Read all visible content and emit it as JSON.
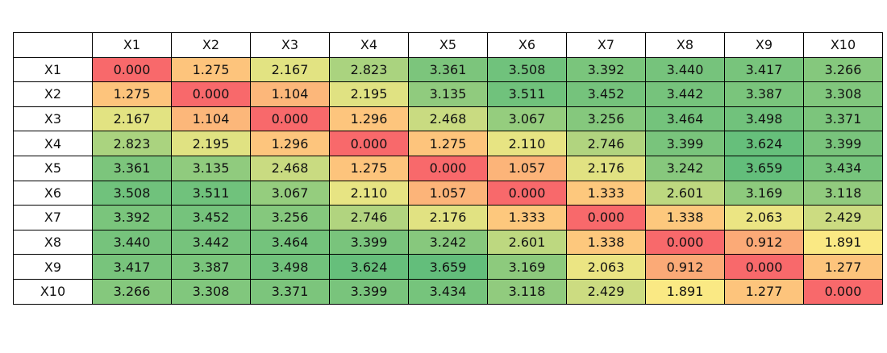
{
  "chart_data": {
    "type": "heatmap",
    "x_labels": [
      "X1",
      "X2",
      "X3",
      "X4",
      "X5",
      "X6",
      "X7",
      "X8",
      "X9",
      "X10"
    ],
    "y_labels": [
      "X1",
      "X2",
      "X3",
      "X4",
      "X5",
      "X6",
      "X7",
      "X8",
      "X9",
      "X10"
    ],
    "values": [
      [
        "0.000",
        "1.275",
        "2.167",
        "2.823",
        "3.361",
        "3.508",
        "3.392",
        "3.440",
        "3.417",
        "3.266"
      ],
      [
        "1.275",
        "0.000",
        "1.104",
        "2.195",
        "3.135",
        "3.511",
        "3.452",
        "3.442",
        "3.387",
        "3.308"
      ],
      [
        "2.167",
        "1.104",
        "0.000",
        "1.296",
        "2.468",
        "3.067",
        "3.256",
        "3.464",
        "3.498",
        "3.371"
      ],
      [
        "2.823",
        "2.195",
        "1.296",
        "0.000",
        "1.275",
        "2.110",
        "2.746",
        "3.399",
        "3.624",
        "3.399"
      ],
      [
        "3.361",
        "3.135",
        "2.468",
        "1.275",
        "0.000",
        "1.057",
        "2.176",
        "3.242",
        "3.659",
        "3.434"
      ],
      [
        "3.508",
        "3.511",
        "3.067",
        "2.110",
        "1.057",
        "0.000",
        "1.333",
        "2.601",
        "3.169",
        "3.118"
      ],
      [
        "3.392",
        "3.452",
        "3.256",
        "2.746",
        "2.176",
        "1.333",
        "0.000",
        "1.338",
        "2.063",
        "2.429"
      ],
      [
        "3.440",
        "3.442",
        "3.464",
        "3.399",
        "3.242",
        "2.601",
        "1.338",
        "0.000",
        "0.912",
        "1.891"
      ],
      [
        "3.417",
        "3.387",
        "3.498",
        "3.624",
        "3.659",
        "3.169",
        "2.063",
        "0.912",
        "0.000",
        "1.277"
      ],
      [
        "3.266",
        "3.308",
        "3.371",
        "3.399",
        "3.434",
        "3.118",
        "2.429",
        "1.891",
        "1.277",
        "0.000"
      ]
    ],
    "color_scale": {
      "low": "#f8696b",
      "mid": "#ffeb84",
      "high": "#63be7b"
    }
  }
}
